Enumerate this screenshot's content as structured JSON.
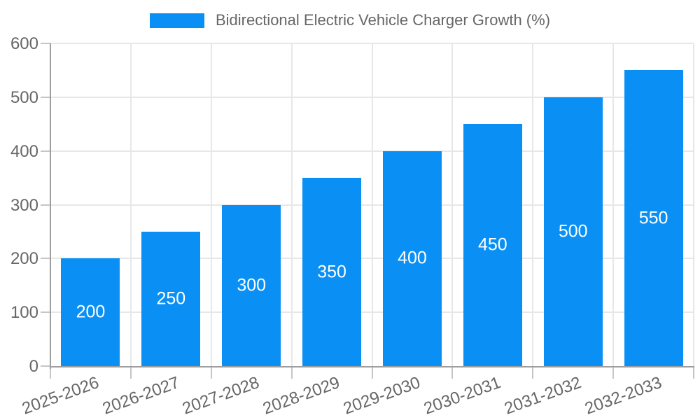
{
  "chart_data": {
    "type": "bar",
    "title": "Bidirectional Electric Vehicle Charger Growth (%)",
    "legend": {
      "label": "Bidirectional Electric Vehicle Charger Growth (%)",
      "position": "top-center"
    },
    "categories": [
      "2025-2026",
      "2026-2027",
      "2027-2028",
      "2028-2029",
      "2029-2030",
      "2030-2031",
      "2031-2032",
      "2032-2033"
    ],
    "series": [
      {
        "name": "Bidirectional Electric Vehicle Charger Growth (%)",
        "values": [
          200,
          250,
          300,
          350,
          400,
          450,
          500,
          550
        ]
      }
    ],
    "xlabel": "",
    "ylabel": "",
    "ylim": [
      0,
      600
    ],
    "ytick_step": 100,
    "ytick_labels": [
      "0",
      "100",
      "200",
      "300",
      "400",
      "500",
      "600"
    ],
    "grid": true,
    "value_labels_shown": true,
    "colors": {
      "bar": "#0A90F5",
      "grid": "#E7E7E7",
      "axis": "#9E9E9E",
      "tick": "#C6C6C6",
      "text": "#666666",
      "value_label": "#FFFFFF",
      "background": "#FFFFFF"
    }
  }
}
